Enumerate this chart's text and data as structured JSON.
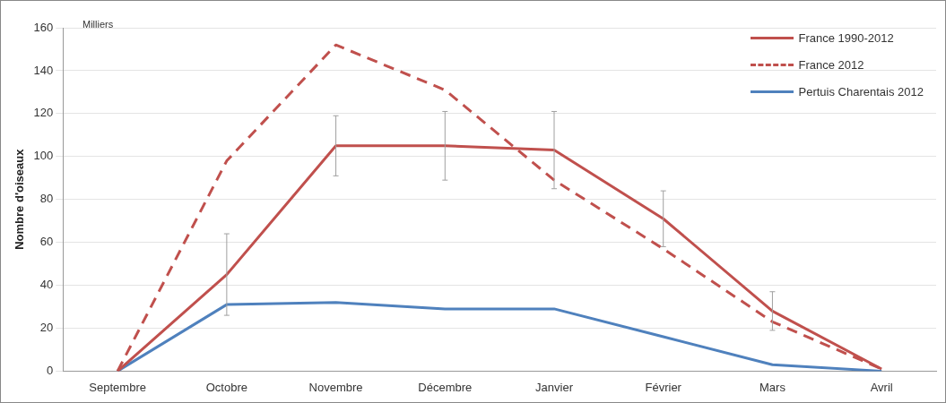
{
  "chart_data": {
    "type": "line",
    "ylabel": "Nombre d'oiseaux",
    "annotations": [
      "Milliers"
    ],
    "categories": [
      "Septembre",
      "Octobre",
      "Novembre",
      "Décembre",
      "Janvier",
      "Février",
      "Mars",
      "Avril"
    ],
    "series": [
      {
        "name": "France 1990-2012",
        "color": "#c0504d",
        "line_style": "solid",
        "values": [
          0,
          45,
          105,
          105,
          103,
          71,
          28,
          1
        ],
        "errors": [
          null,
          19,
          14,
          16,
          18,
          13,
          9,
          null
        ]
      },
      {
        "name": "France 2012",
        "color": "#c0504d",
        "line_style": "dashed",
        "values": [
          0,
          98,
          152,
          131,
          89,
          57,
          23,
          1
        ]
      },
      {
        "name": "Pertuis Charentais 2012",
        "color": "#4f81bd",
        "line_style": "solid",
        "values": [
          0,
          31,
          32,
          29,
          29,
          16,
          3,
          0
        ]
      }
    ],
    "ylim": [
      0,
      160
    ],
    "yticks": [
      0,
      20,
      40,
      60,
      80,
      100,
      120,
      140,
      160
    ],
    "grid": "y",
    "legend": "top right",
    "marker": "none"
  }
}
